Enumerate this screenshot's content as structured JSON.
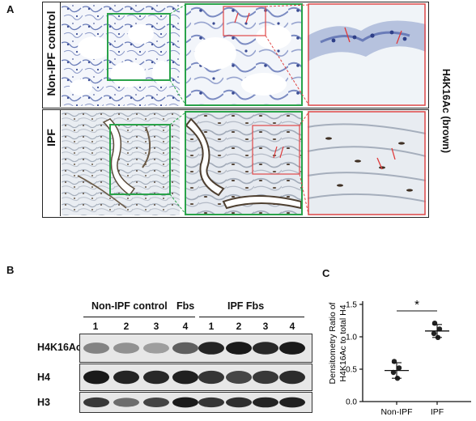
{
  "panel_a": {
    "label": "A",
    "rows": [
      {
        "label": "Non-IPF control"
      },
      {
        "label": "IPF"
      }
    ],
    "stain_label": "H4K16Ac (brown)",
    "colors": {
      "zoom_box": "#2aa34a",
      "detail_box": "#e04848",
      "arrow": "#e03a3a"
    }
  },
  "panel_b": {
    "label": "B",
    "group_labels": {
      "non_ipf": "Non-IPF control",
      "fbs": "Fbs",
      "ipf": "IPF Fbs"
    },
    "lanes": [
      "1",
      "2",
      "3",
      "4",
      "1",
      "2",
      "3",
      "4"
    ],
    "blots": [
      {
        "label": "H4K16Ac",
        "intensities": [
          0.45,
          0.38,
          0.32,
          0.62,
          0.9,
          0.95,
          0.88,
          0.95
        ]
      },
      {
        "label": "H4",
        "intensities": [
          0.95,
          0.9,
          0.88,
          0.92,
          0.82,
          0.74,
          0.8,
          0.86
        ]
      },
      {
        "label": "H3",
        "intensities": [
          0.8,
          0.55,
          0.75,
          0.95,
          0.82,
          0.85,
          0.9,
          0.92
        ]
      }
    ]
  },
  "panel_c": {
    "label": "C",
    "significance": "*",
    "chart_data": {
      "type": "scatter",
      "ylabel": "Densitometry Ratio of H4K16Ac to total H4",
      "categories": [
        "Non-IPF",
        "IPF"
      ],
      "ylim": [
        0.0,
        1.5
      ],
      "yticks": [
        "0.0",
        "0.5",
        "1.0",
        "1.5"
      ],
      "series": [
        {
          "category": "Non-IPF",
          "values": [
            0.62,
            0.52,
            0.45,
            0.36
          ],
          "mean": 0.48,
          "sd": 0.12
        },
        {
          "category": "IPF",
          "values": [
            1.21,
            1.12,
            1.05,
            0.99
          ],
          "mean": 1.09,
          "sd": 0.1
        }
      ]
    }
  }
}
